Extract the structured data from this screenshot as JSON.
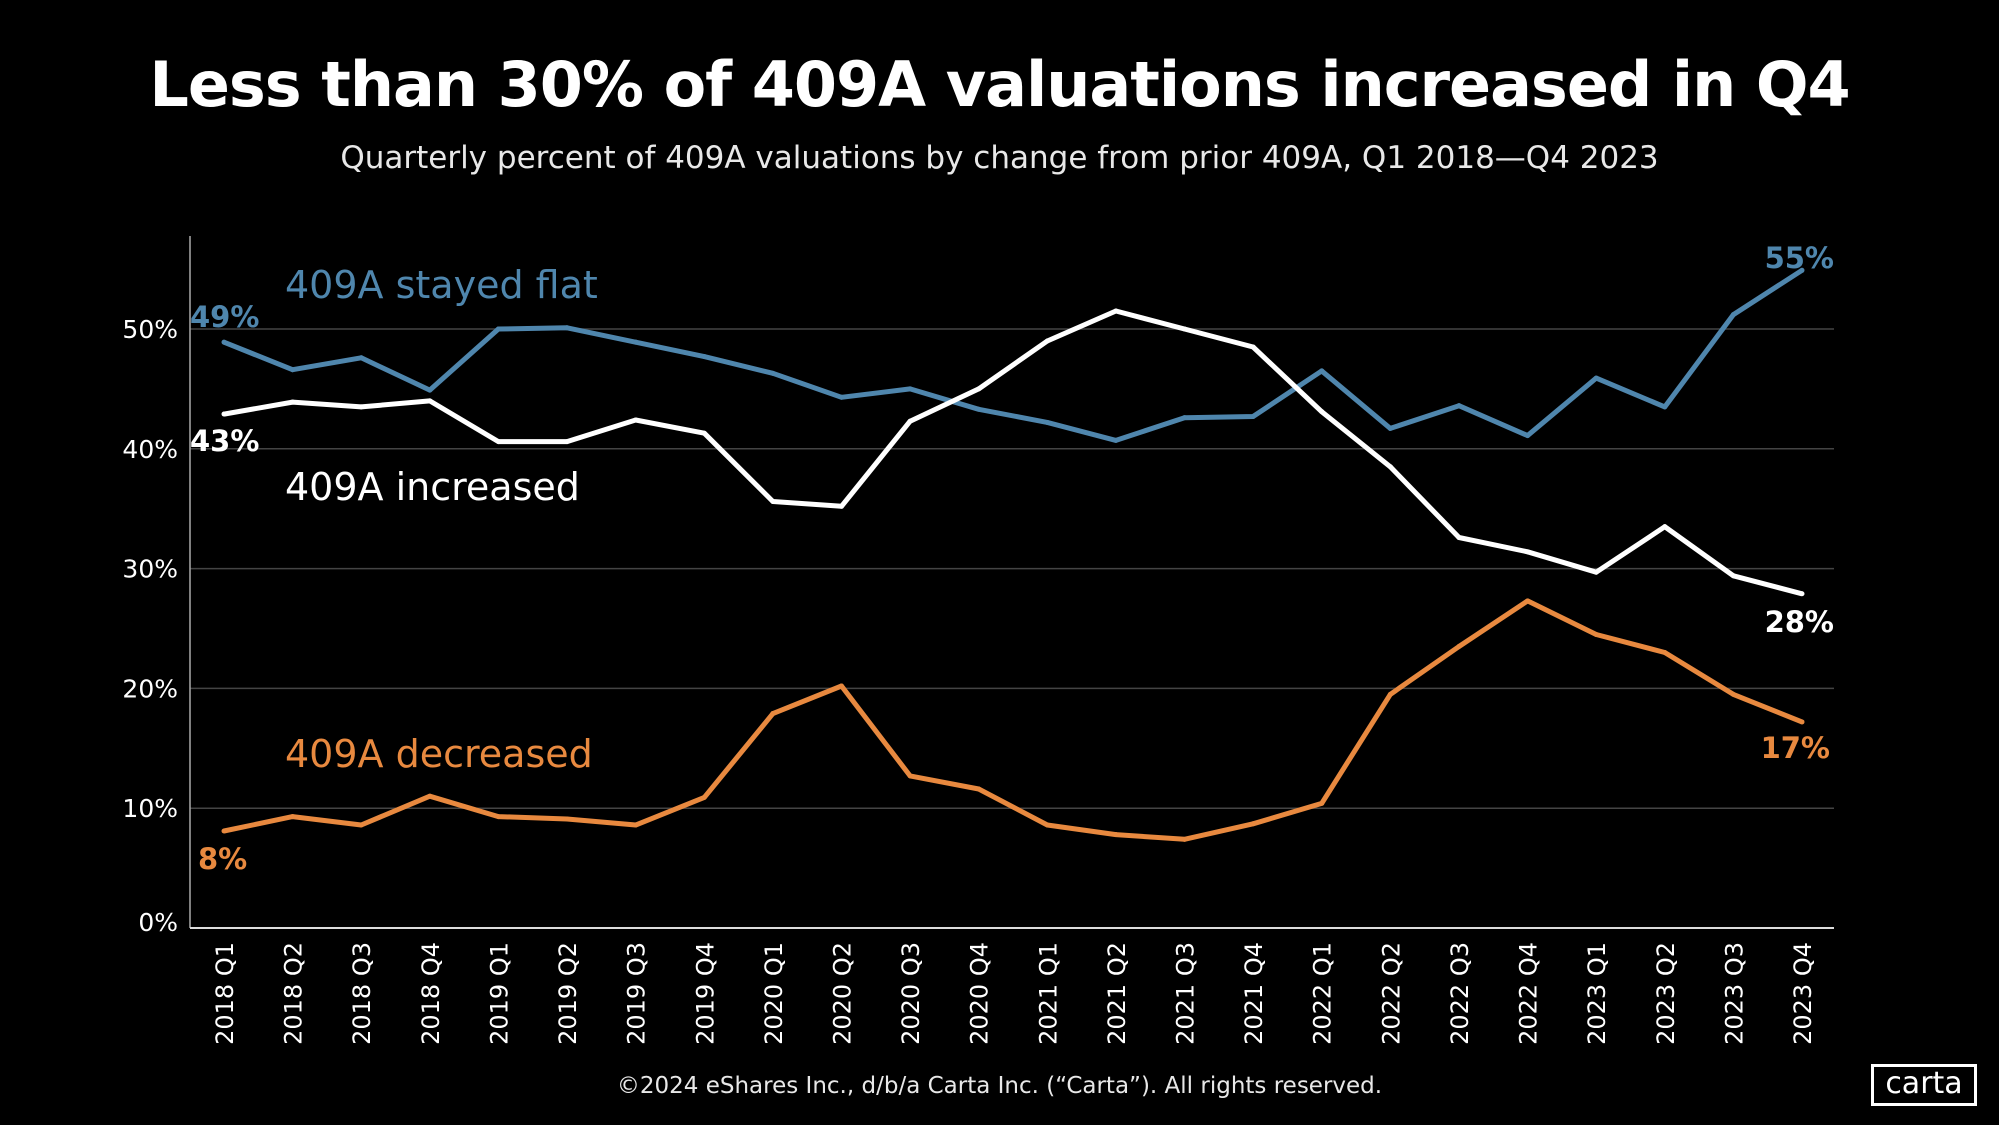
{
  "chart_data": {
    "type": "line",
    "title": "Less than 30% of 409A valuations increased in Q4",
    "subtitle": "Quarterly percent of 409A valuations by change from prior 409A, Q1 2018—Q4 2023",
    "xlabel": "",
    "ylabel": "",
    "ylim": [
      0,
      55
    ],
    "yticks": [
      "0%",
      "10%",
      "20%",
      "30%",
      "40%",
      "50%"
    ],
    "grid": true,
    "legend": "inline labels",
    "categories": [
      "2018 Q1",
      "2018 Q2",
      "2018 Q3",
      "2018 Q4",
      "2019 Q1",
      "2019 Q2",
      "2019 Q3",
      "2019 Q4",
      "2020 Q1",
      "2020 Q2",
      "2020 Q3",
      "2020 Q4",
      "2021 Q1",
      "2021 Q2",
      "2021 Q3",
      "2021 Q4",
      "2022 Q1",
      "2022 Q2",
      "2022 Q3",
      "2022 Q4",
      "2023 Q1",
      "2023 Q2",
      "2023 Q3",
      "2023 Q4"
    ],
    "series": [
      {
        "name": "409A stayed flat",
        "color": "#4f86ad",
        "start_label": "49%",
        "end_label": "55%",
        "values": [
          48.9,
          46.6,
          47.6,
          44.9,
          50.0,
          50.1,
          48.9,
          47.7,
          46.3,
          44.3,
          45.0,
          43.3,
          42.2,
          40.7,
          42.6,
          42.7,
          46.5,
          41.7,
          43.6,
          41.1,
          45.9,
          43.5,
          51.2,
          54.9
        ]
      },
      {
        "name": "409A increased",
        "color": "#ffffff",
        "start_label": "43%",
        "end_label": "28%",
        "values": [
          42.9,
          43.9,
          43.5,
          44.0,
          40.6,
          40.6,
          42.4,
          41.3,
          35.6,
          35.2,
          42.3,
          45.0,
          49.0,
          51.5,
          50.0,
          48.5,
          43.1,
          38.5,
          32.6,
          31.4,
          29.7,
          33.5,
          29.4,
          27.9
        ]
      },
      {
        "name": "409A decreased",
        "color": "#e8893f",
        "start_label": "8%",
        "end_label": "17%",
        "values": [
          8.1,
          9.3,
          8.6,
          11.0,
          9.3,
          9.1,
          8.6,
          10.9,
          17.9,
          20.2,
          12.7,
          11.6,
          8.6,
          7.8,
          7.4,
          8.7,
          10.4,
          19.5,
          23.5,
          27.3,
          24.5,
          23.0,
          19.5,
          17.2
        ]
      }
    ]
  },
  "footer": "©2024 eShares Inc., d/b/a Carta Inc. (“Carta”). All rights reserved.",
  "logo": "carta"
}
